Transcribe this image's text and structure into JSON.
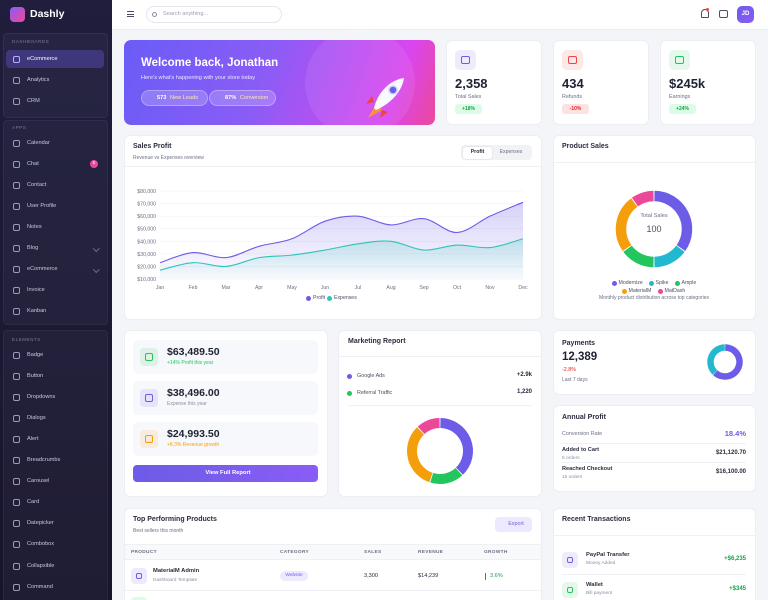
{
  "brand": "Dashly",
  "sidebar": {
    "sections": [
      {
        "title": "DASHBOARDS",
        "items": [
          {
            "label": "eCommerce",
            "active": true
          },
          {
            "label": "Analytics"
          },
          {
            "label": "CRM"
          }
        ]
      },
      {
        "title": "APPS",
        "items": [
          {
            "label": "Calendar"
          },
          {
            "label": "Chat",
            "badge": "5"
          },
          {
            "label": "Contact"
          },
          {
            "label": "User Profile"
          },
          {
            "label": "Notes"
          },
          {
            "label": "Blog",
            "expandable": true
          },
          {
            "label": "eCommerce",
            "expandable": true
          },
          {
            "label": "Invoice"
          },
          {
            "label": "Kanban"
          }
        ]
      },
      {
        "title": "ELEMENTS",
        "items": [
          {
            "label": "Badge"
          },
          {
            "label": "Button"
          },
          {
            "label": "Dropdowns"
          },
          {
            "label": "Dialogs"
          },
          {
            "label": "Alert"
          },
          {
            "label": "Breadcrumbs"
          },
          {
            "label": "Carousel"
          },
          {
            "label": "Card"
          },
          {
            "label": "Datepicker"
          },
          {
            "label": "Combobox"
          },
          {
            "label": "Collapsible"
          },
          {
            "label": "Command"
          }
        ]
      }
    ]
  },
  "topbar": {
    "search_placeholder": "Search anything...",
    "avatar": "JD"
  },
  "welcome": {
    "title": "Welcome back, Jonathan",
    "subtitle": "Here's what's happening with your store today",
    "pills": [
      {
        "value": "573",
        "label": "New Leads"
      },
      {
        "value": "87%",
        "label": "Conversion"
      }
    ]
  },
  "stats": [
    {
      "value": "2,358",
      "label": "Total Sales",
      "change": "+18%",
      "trend": "up",
      "color": "#6c5ce7"
    },
    {
      "value": "434",
      "label": "Refunds",
      "change": "-10%",
      "trend": "down",
      "color": "#ef4444"
    },
    {
      "value": "$245k",
      "label": "Earnings",
      "change": "+24%",
      "trend": "up",
      "color": "#22c55e"
    }
  ],
  "sales_profit": {
    "type": "line",
    "title": "Sales Profit",
    "subtitle": "Revenue vs Expenses overview",
    "toggle": [
      "Profit",
      "Expenses"
    ],
    "categories": [
      "Jan",
      "Feb",
      "Mar",
      "Apr",
      "May",
      "Jun",
      "Jul",
      "Aug",
      "Sep",
      "Oct",
      "Nov",
      "Dec"
    ],
    "ylim": [
      10000,
      80000
    ],
    "yticks": [
      {
        "value": 10000,
        "label": "$10,000"
      },
      {
        "value": 20000,
        "label": "$20,000"
      },
      {
        "value": 30000,
        "label": "$30,000"
      },
      {
        "value": 40000,
        "label": "$40,000"
      },
      {
        "value": 50000,
        "label": "$50,000"
      },
      {
        "value": 60000,
        "label": "$60,000"
      },
      {
        "value": 70000,
        "label": "$70,000"
      },
      {
        "value": 80000,
        "label": "$80,000"
      }
    ],
    "series": [
      {
        "name": "Profit",
        "color": "#6c5ce7",
        "values": [
          23000,
          31000,
          27000,
          36000,
          42000,
          56000,
          60000,
          53000,
          58000,
          47000,
          60000,
          71000
        ]
      },
      {
        "name": "Expenses",
        "color": "#2ec4b6",
        "values": [
          17000,
          23000,
          20000,
          27000,
          29000,
          33000,
          38000,
          40000,
          33000,
          37000,
          35000,
          42000
        ]
      }
    ]
  },
  "product_sales": {
    "type": "donut",
    "title": "Product Sales",
    "center_label": "Total Sales",
    "center_value": "100",
    "series": [
      {
        "name": "Modernize",
        "color": "#6c5ce7",
        "value": 35
      },
      {
        "name": "Spike",
        "color": "#22b8cf",
        "value": 15
      },
      {
        "name": "Ample",
        "color": "#22c55e",
        "value": 15
      },
      {
        "name": "MaterialM",
        "color": "#f59e0b",
        "value": 25
      },
      {
        "name": "MatDash",
        "color": "#ec4899",
        "value": 10
      }
    ],
    "caption": "Monthly product distribution across top categories"
  },
  "summary": {
    "items": [
      {
        "value": "$63,489.50",
        "note": "+14% Profit this year",
        "color": "#22c55e",
        "note_color": "#22c55e"
      },
      {
        "value": "$38,496.00",
        "note": "Expense this year",
        "color": "#6c5ce7",
        "note_color": "#8a8fa3"
      },
      {
        "value": "$24,993.50",
        "note": "+8.3% Revenue growth",
        "color": "#f59e0b",
        "note_color": "#f59e0b"
      }
    ],
    "button": "View Full Report"
  },
  "marketing": {
    "title": "Marketing Report",
    "items": [
      {
        "label": "Google Ads",
        "value": "+2.9k",
        "color": "#6c5ce7"
      },
      {
        "label": "Referral Traffic",
        "value": "1,220",
        "color": "#22c55e"
      }
    ],
    "donut": {
      "type": "donut",
      "values": [
        38,
        17,
        33,
        12
      ],
      "colors": [
        "#6c5ce7",
        "#22c55e",
        "#f59e0b",
        "#ec4899"
      ]
    }
  },
  "payments": {
    "title": "Payments",
    "value": "12,389",
    "change": "-2.8%",
    "period": "Last 7 days",
    "donut": {
      "type": "donut",
      "values": [
        62,
        38
      ],
      "colors": [
        "#6c5ce7",
        "#22b8cf"
      ]
    }
  },
  "annual_profit": {
    "title": "Annual Profit",
    "conversion_label": "Conversion Rate",
    "conversion_value": "18.4%",
    "rows": [
      {
        "label": "Added to Cart",
        "sub": "5 orders",
        "value": "$21,120.70"
      },
      {
        "label": "Reached Checkout",
        "sub": "15 orders",
        "value": "$16,100.00"
      }
    ]
  },
  "top_products": {
    "title": "Top Performing Products",
    "subtitle": "Best sellers this month",
    "export": "Export",
    "columns": [
      "PRODUCT",
      "CATEGORY",
      "SALES",
      "REVENUE",
      "GROWTH"
    ],
    "rows": [
      {
        "name": "MaterialM Admin",
        "sub": "Dashboard Template",
        "category": "Website",
        "sales": "3,300",
        "revenue": "$14,239",
        "growth": "3.6%"
      }
    ]
  },
  "transactions": {
    "title": "Recent Transactions",
    "items": [
      {
        "name": "PayPal Transfer",
        "sub": "Money Added",
        "amount": "+$6,235",
        "color": "#6c5ce7"
      },
      {
        "name": "Wallet",
        "sub": "Bill payment",
        "amount": "+$345",
        "color": "#22c55e"
      }
    ]
  }
}
